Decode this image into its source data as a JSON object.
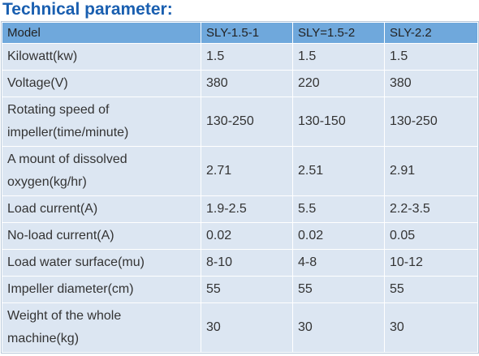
{
  "header": {
    "title": "Technical parameter:"
  },
  "table": {
    "columns": [
      "Model",
      "SLY-1.5-1",
      "SLY=1.5-2",
      "SLY-2.2"
    ],
    "rows": [
      [
        "Kilowatt(kw)",
        "1.5",
        "1.5",
        "1.5"
      ],
      [
        "Voltage(V)",
        "380",
        "220",
        "380"
      ],
      [
        "Rotating speed of impeller(time/minute)",
        "130-250",
        "130-150",
        "130-250"
      ],
      [
        "A mount of dissolved oxygen(kg/hr)",
        "2.71",
        "2.51",
        "2.91"
      ],
      [
        "Load current(A)",
        "1.9-2.5",
        "5.5",
        "2.2-3.5"
      ],
      [
        "No-load current(A)",
        "0.02",
        "0.02",
        "0.05"
      ],
      [
        "Load water surface(mu)",
        "8-10",
        "4-8",
        "10-12"
      ],
      [
        "Impeller diameter(cm)",
        "55",
        "55",
        "55"
      ],
      [
        "Weight of the whole machine(kg)",
        "30",
        "30",
        "30"
      ]
    ]
  }
}
